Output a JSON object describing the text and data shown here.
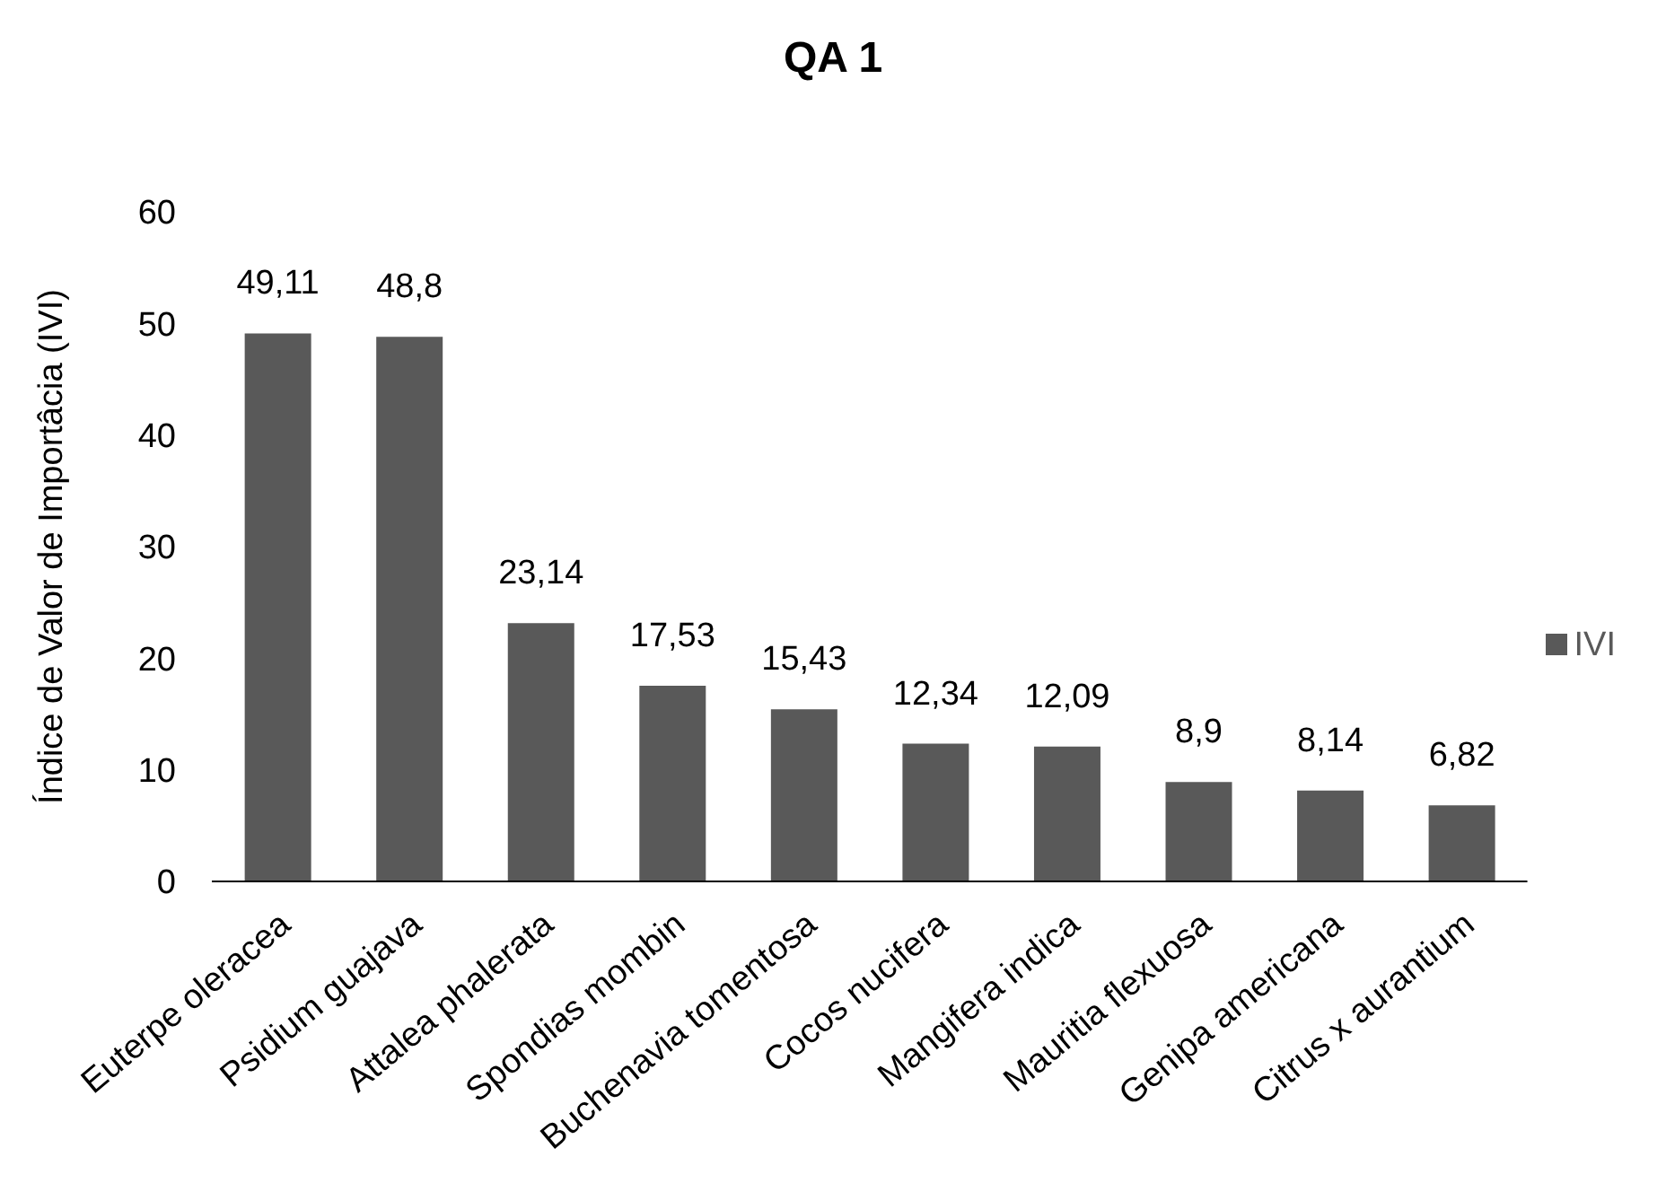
{
  "chart_data": {
    "type": "bar",
    "title": "QA 1",
    "ylabel": "Índice de Valor de Importâcia (IVI)",
    "categories": [
      "Euterpe oleracea",
      "Psidium guajava",
      "Attalea phalerata",
      "Spondias mombin",
      "Buchenavia tomentosa",
      "Cocos nucifera",
      "Mangifera indica",
      "Mauritia flexuosa",
      "Genipa americana",
      "Citrus x aurantium"
    ],
    "series": [
      {
        "name": "IVI",
        "color": "#595959",
        "values": [
          49.11,
          48.8,
          23.14,
          17.53,
          15.43,
          12.34,
          12.09,
          8.9,
          8.14,
          6.82
        ],
        "value_labels": [
          "49,11",
          "48,8",
          "23,14",
          "17,53",
          "15,43",
          "12,34",
          "12,09",
          "8,9",
          "8,14",
          "6,82"
        ]
      }
    ],
    "ylim": [
      0,
      60
    ],
    "yticks": [
      0,
      10,
      20,
      30,
      40,
      50,
      60
    ],
    "grid": false,
    "legend": "right"
  }
}
